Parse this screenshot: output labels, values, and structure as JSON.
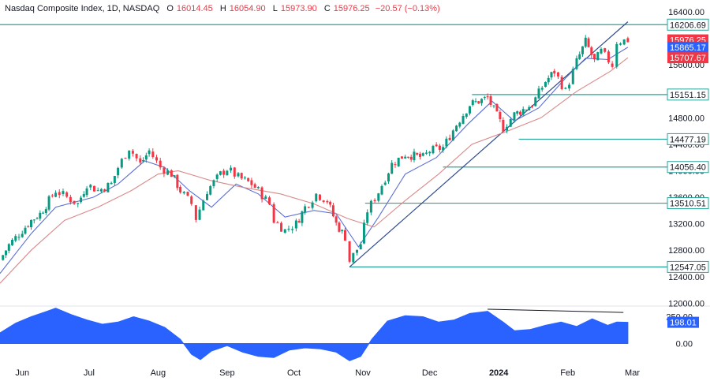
{
  "header": {
    "symbol": "Nasdaq Composite Index, 1D, NASDAQ",
    "o_label": "O",
    "o": "16014.45",
    "h_label": "H",
    "h": "16054.90",
    "l_label": "L",
    "l": "15973.90",
    "c_label": "C",
    "c": "15976.25",
    "change": "−20.57 (−0.13%)"
  },
  "colors": {
    "up": "#089981",
    "down": "#f23645",
    "level": "#26a69a",
    "ema_fast": "#5b6fd6",
    "ema_slow": "#d9898a",
    "trend": "#2f4c8f",
    "osc_fill": "#2962ff",
    "badge_red": "#f23645",
    "badge_blue": "#2962ff",
    "badge_teal": "#ffffff",
    "axis_text": "#131722"
  },
  "chart_data": {
    "type": "candlestick",
    "title": "Nasdaq Composite Index, 1D, NASDAQ",
    "y_ticks": [
      "16400.00",
      "16000.00",
      "15600.00",
      "15200.00",
      "14800.00",
      "14400.00",
      "14000.00",
      "13600.00",
      "13200.00",
      "12800.00",
      "12400.00",
      "12000.00"
    ],
    "y_tick_values": [
      16400,
      16000,
      15600,
      15200,
      14800,
      14400,
      14000,
      13600,
      13200,
      12800,
      12400,
      12000
    ],
    "ylim": [
      11980,
      16460
    ],
    "x_labels": [
      {
        "text": "Jun",
        "date": "2023-06-01"
      },
      {
        "text": "Jul",
        "date": "2023-07-01"
      },
      {
        "text": "Aug",
        "date": "2023-08-01"
      },
      {
        "text": "Sep",
        "date": "2023-09-01"
      },
      {
        "text": "Oct",
        "date": "2023-10-01"
      },
      {
        "text": "Nov",
        "date": "2023-11-01"
      },
      {
        "text": "Dec",
        "date": "2023-12-01"
      },
      {
        "text": "2024",
        "date": "2024-01-01",
        "bold": true
      },
      {
        "text": "Feb",
        "date": "2024-02-01"
      },
      {
        "text": "Mar",
        "date": "2024-03-01"
      }
    ],
    "horizontal_levels": [
      {
        "value": 16206.69,
        "label": "16206.69",
        "from_date": "2023-05-22"
      },
      {
        "value": 15151.15,
        "label": "15151.15",
        "from_date": "2023-12-20"
      },
      {
        "value": 14477.19,
        "label": "14477.19",
        "from_date": "2024-01-10"
      },
      {
        "value": 14056.4,
        "label": "14056.40",
        "from_date": "2023-12-07"
      },
      {
        "value": 13510.51,
        "label": "13510.51",
        "from_date": "2023-11-02"
      },
      {
        "value": 12547.05,
        "label": "12547.05",
        "from_date": "2023-10-26"
      }
    ],
    "price_badges": [
      {
        "value": 15976.25,
        "label": "15976.25",
        "kind": "red"
      },
      {
        "value": 15865.17,
        "label": "15865.17",
        "kind": "blue"
      },
      {
        "value": 15707.67,
        "label": "15707.67",
        "kind": "red"
      }
    ],
    "trendline": {
      "start": {
        "date": "2023-10-26",
        "value": 12547
      },
      "end": {
        "date": "2024-02-28",
        "value": 16250
      }
    },
    "series": [
      {
        "kind": "close",
        "points": [
          [
            "2023-05-22",
            12650
          ],
          [
            "2023-05-26",
            12880
          ],
          [
            "2023-06-01",
            13100
          ],
          [
            "2023-06-05",
            13250
          ],
          [
            "2023-06-09",
            13350
          ],
          [
            "2023-06-13",
            13550
          ],
          [
            "2023-06-16",
            13700
          ],
          [
            "2023-06-21",
            13600
          ],
          [
            "2023-06-26",
            13500
          ],
          [
            "2023-06-30",
            13800
          ],
          [
            "2023-07-05",
            13700
          ],
          [
            "2023-07-11",
            13800
          ],
          [
            "2023-07-14",
            14050
          ],
          [
            "2023-07-19",
            14350
          ],
          [
            "2023-07-24",
            14100
          ],
          [
            "2023-07-28",
            14300
          ],
          [
            "2023-08-02",
            14050
          ],
          [
            "2023-08-07",
            13950
          ],
          [
            "2023-08-11",
            13700
          ],
          [
            "2023-08-16",
            13500
          ],
          [
            "2023-08-18",
            13280
          ],
          [
            "2023-08-23",
            13700
          ],
          [
            "2023-08-29",
            13950
          ],
          [
            "2023-09-01",
            14030
          ],
          [
            "2023-09-06",
            13900
          ],
          [
            "2023-09-12",
            13800
          ],
          [
            "2023-09-15",
            13700
          ],
          [
            "2023-09-20",
            13500
          ],
          [
            "2023-09-22",
            13250
          ],
          [
            "2023-09-27",
            13100
          ],
          [
            "2023-10-02",
            13200
          ],
          [
            "2023-10-06",
            13450
          ],
          [
            "2023-10-11",
            13650
          ],
          [
            "2023-10-16",
            13550
          ],
          [
            "2023-10-20",
            13200
          ],
          [
            "2023-10-24",
            13000
          ],
          [
            "2023-10-26",
            12640
          ],
          [
            "2023-10-31",
            12900
          ],
          [
            "2023-11-03",
            13400
          ],
          [
            "2023-11-08",
            13680
          ],
          [
            "2023-11-14",
            14100
          ],
          [
            "2023-11-20",
            14250
          ],
          [
            "2023-11-28",
            14200
          ],
          [
            "2023-12-01",
            14300
          ],
          [
            "2023-12-07",
            14350
          ],
          [
            "2023-12-13",
            14700
          ],
          [
            "2023-12-19",
            15000
          ],
          [
            "2023-12-27",
            15100
          ],
          [
            "2024-01-03",
            14650
          ],
          [
            "2024-01-08",
            14850
          ],
          [
            "2024-01-16",
            15000
          ],
          [
            "2024-01-22",
            15350
          ],
          [
            "2024-01-26",
            15500
          ],
          [
            "2024-01-31",
            15200
          ],
          [
            "2024-02-05",
            15650
          ],
          [
            "2024-02-09",
            15950
          ],
          [
            "2024-02-13",
            15650
          ],
          [
            "2024-02-16",
            15800
          ],
          [
            "2024-02-21",
            15600
          ],
          [
            "2024-02-23",
            15950
          ],
          [
            "2024-02-28",
            15976
          ]
        ]
      },
      {
        "name": "",
        "kind": "ema_fast",
        "points": [
          [
            "2023-05-22",
            12450
          ],
          [
            "2023-06-05",
            13050
          ],
          [
            "2023-06-16",
            13450
          ],
          [
            "2023-07-03",
            13600
          ],
          [
            "2023-07-14",
            13800
          ],
          [
            "2023-07-26",
            14150
          ],
          [
            "2023-08-04",
            14050
          ],
          [
            "2023-08-15",
            13700
          ],
          [
            "2023-08-25",
            13450
          ],
          [
            "2023-09-05",
            13800
          ],
          [
            "2023-09-15",
            13650
          ],
          [
            "2023-09-27",
            13300
          ],
          [
            "2023-10-10",
            13400
          ],
          [
            "2023-10-20",
            13350
          ],
          [
            "2023-10-30",
            12850
          ],
          [
            "2023-11-08",
            13300
          ],
          [
            "2023-11-20",
            13950
          ],
          [
            "2023-12-04",
            14200
          ],
          [
            "2023-12-18",
            14700
          ],
          [
            "2023-12-29",
            15050
          ],
          [
            "2024-01-08",
            14750
          ],
          [
            "2024-01-19",
            14950
          ],
          [
            "2024-01-31",
            15400
          ],
          [
            "2024-02-09",
            15700
          ],
          [
            "2024-02-19",
            15680
          ],
          [
            "2024-02-28",
            15865
          ]
        ]
      },
      {
        "name": "",
        "kind": "ema_slow",
        "points": [
          [
            "2023-05-22",
            12300
          ],
          [
            "2023-06-05",
            12800
          ],
          [
            "2023-06-20",
            13250
          ],
          [
            "2023-07-05",
            13450
          ],
          [
            "2023-07-20",
            13700
          ],
          [
            "2023-08-01",
            13950
          ],
          [
            "2023-08-10",
            14000
          ],
          [
            "2023-08-25",
            13850
          ],
          [
            "2023-09-08",
            13750
          ],
          [
            "2023-09-25",
            13650
          ],
          [
            "2023-10-10",
            13500
          ],
          [
            "2023-10-25",
            13280
          ],
          [
            "2023-11-06",
            13150
          ],
          [
            "2023-11-20",
            13550
          ],
          [
            "2023-12-05",
            13950
          ],
          [
            "2023-12-20",
            14400
          ],
          [
            "2024-01-05",
            14600
          ],
          [
            "2024-01-20",
            14800
          ],
          [
            "2024-02-05",
            15200
          ],
          [
            "2024-02-20",
            15500
          ],
          [
            "2024-02-28",
            15707
          ]
        ]
      }
    ],
    "oscillator": {
      "label": "198.01",
      "value": 198.01,
      "y_ticks": [
        "250.00",
        "0.00"
      ],
      "y_tick_values": [
        250,
        0
      ],
      "ylim": [
        -180,
        320
      ],
      "divergence": {
        "start": {
          "date": "2023-12-27",
          "value": 320
        },
        "end": {
          "date": "2024-02-26",
          "value": 290
        }
      },
      "points": [
        [
          "2023-05-22",
          100
        ],
        [
          "2023-05-29",
          190
        ],
        [
          "2023-06-05",
          250
        ],
        [
          "2023-06-12",
          300
        ],
        [
          "2023-06-16",
          330
        ],
        [
          "2023-06-23",
          270
        ],
        [
          "2023-06-30",
          220
        ],
        [
          "2023-07-07",
          180
        ],
        [
          "2023-07-14",
          200
        ],
        [
          "2023-07-21",
          250
        ],
        [
          "2023-07-28",
          210
        ],
        [
          "2023-08-04",
          150
        ],
        [
          "2023-08-11",
          40
        ],
        [
          "2023-08-16",
          -100
        ],
        [
          "2023-08-20",
          -150
        ],
        [
          "2023-08-25",
          -70
        ],
        [
          "2023-09-01",
          -20
        ],
        [
          "2023-09-08",
          -80
        ],
        [
          "2023-09-15",
          -120
        ],
        [
          "2023-09-22",
          -130
        ],
        [
          "2023-09-29",
          -60
        ],
        [
          "2023-10-06",
          -40
        ],
        [
          "2023-10-13",
          -50
        ],
        [
          "2023-10-20",
          -80
        ],
        [
          "2023-10-26",
          -160
        ],
        [
          "2023-10-31",
          -120
        ],
        [
          "2023-11-05",
          40
        ],
        [
          "2023-11-12",
          210
        ],
        [
          "2023-11-20",
          260
        ],
        [
          "2023-11-28",
          250
        ],
        [
          "2023-12-05",
          200
        ],
        [
          "2023-12-12",
          220
        ],
        [
          "2023-12-19",
          280
        ],
        [
          "2023-12-27",
          300
        ],
        [
          "2024-01-03",
          200
        ],
        [
          "2024-01-08",
          120
        ],
        [
          "2024-01-15",
          130
        ],
        [
          "2024-01-22",
          170
        ],
        [
          "2024-01-29",
          200
        ],
        [
          "2024-02-05",
          160
        ],
        [
          "2024-02-12",
          230
        ],
        [
          "2024-02-19",
          170
        ],
        [
          "2024-02-23",
          200
        ],
        [
          "2024-02-28",
          198
        ]
      ]
    }
  }
}
